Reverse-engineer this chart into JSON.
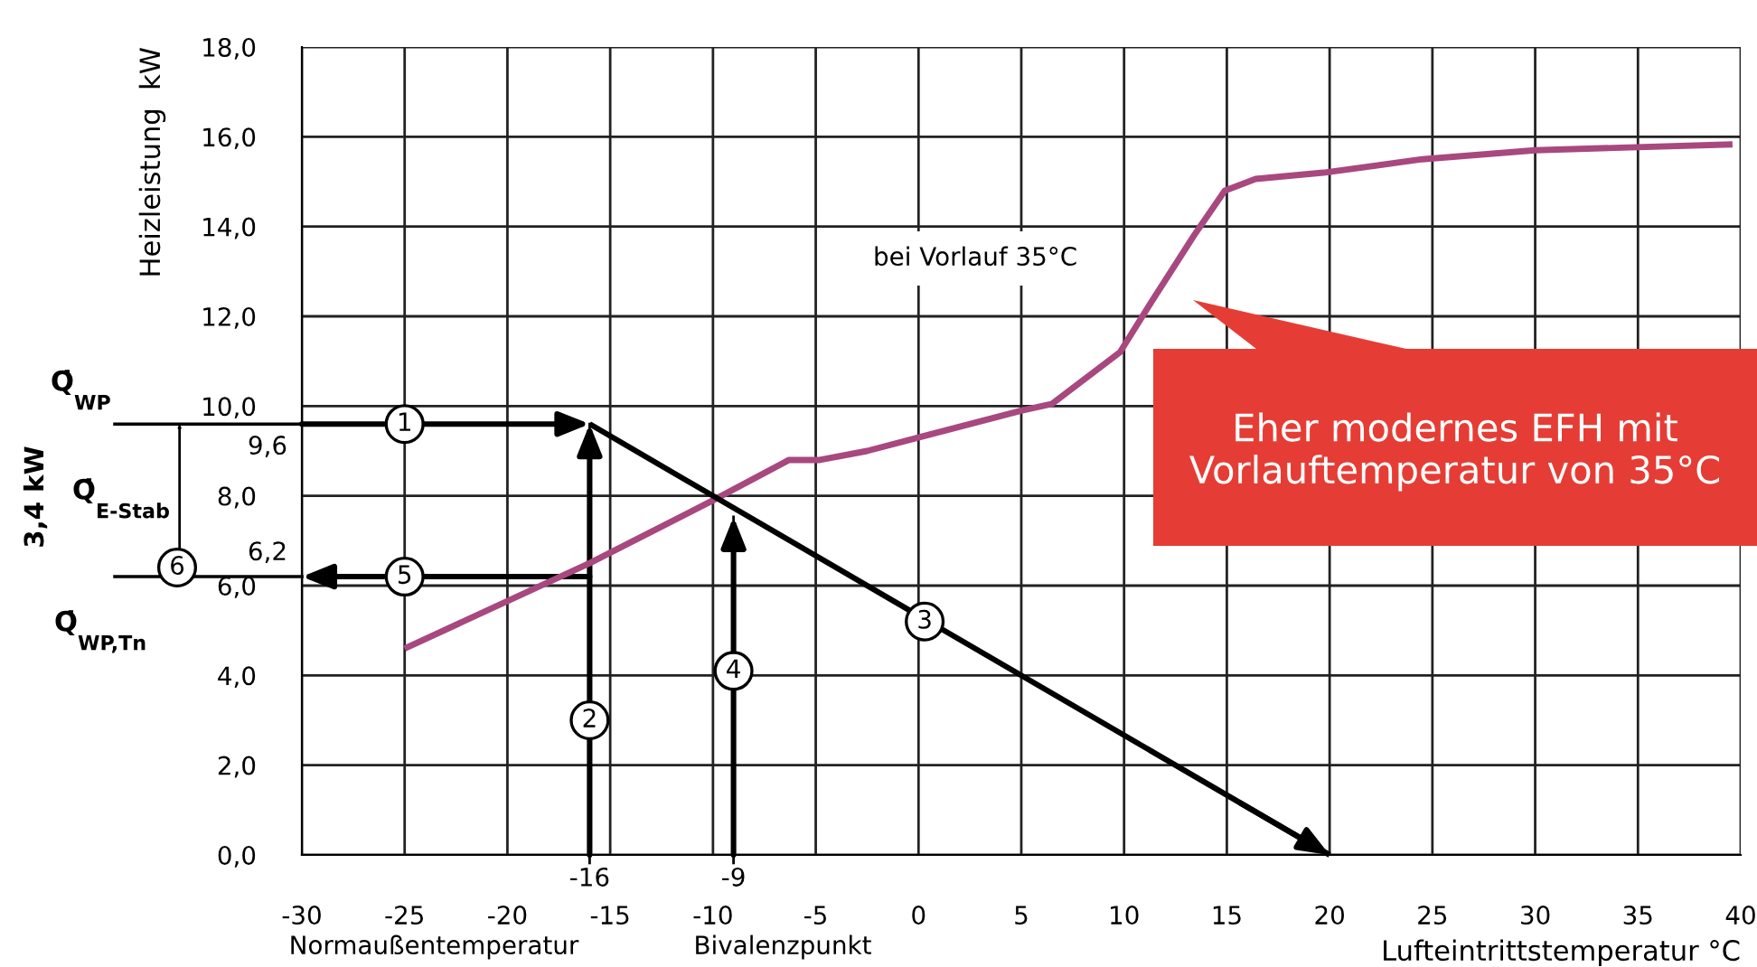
{
  "chart_data": {
    "type": "line",
    "xlabel": "Lufteintrittstemperatur °C",
    "ylabel": "Heizleistung  kW",
    "xlim": [
      -30,
      40
    ],
    "xticks": [
      -30,
      -25,
      -20,
      -15,
      -10,
      -5,
      0,
      5,
      10,
      15,
      20,
      25,
      30,
      35,
      40
    ],
    "ylim": [
      0,
      18
    ],
    "yticks": [
      {
        "value": 0,
        "label": "0,0"
      },
      {
        "value": 2,
        "label": "2,0"
      },
      {
        "value": 4,
        "label": "4,0"
      },
      {
        "value": 6,
        "label": "6,0"
      },
      {
        "value": 8,
        "label": "8,0"
      },
      {
        "value": 10,
        "label": "10,0"
      },
      {
        "value": 12,
        "label": "12,0"
      },
      {
        "value": 14,
        "label": "14,0"
      },
      {
        "value": 16,
        "label": "16,0"
      },
      {
        "value": 18,
        "label": "18,0"
      }
    ],
    "grid": true,
    "series": [
      {
        "color": "#a8487f",
        "marker": "none",
        "x": [
          -25,
          -16,
          -10,
          -6.3,
          -4.8,
          -2.5,
          5,
          6.5,
          9.8,
          11.3,
          13.4,
          14.9,
          16.4,
          19.7,
          24.5,
          30,
          39.6
        ],
        "values": [
          4.6,
          6.5,
          7.9,
          8.8,
          8.8,
          9.0,
          9.9,
          10.05,
          11.2,
          12.3,
          13.8,
          14.8,
          15.06,
          15.2,
          15.5,
          15.7,
          15.83
        ]
      },
      {
        "color": "#000000",
        "x": [
          -16,
          20
        ],
        "values": [
          9.6,
          0
        ]
      }
    ],
    "ref_lines": [
      {
        "axis": "y",
        "value": 9.6,
        "label": "9,6"
      },
      {
        "axis": "y",
        "value": 6.2,
        "label": "6,2"
      },
      {
        "axis": "x",
        "value": -16,
        "label": "-16"
      },
      {
        "axis": "x",
        "value": -9,
        "label": "-9"
      }
    ],
    "annotations": [
      "bei Vorlauf 35°C",
      "Eher modernes EFH mit\nVorlauftemperatur von 35°C",
      "Normaußentemperatur",
      "Bivalenzpunkt",
      "Q̇$_{WP}$",
      "Q̇$_{E-Stab}$",
      "Q̇$_{WP,Tn}$",
      "3,4 kW",
      "6",
      {
        "text": "1",
        "x": -25,
        "y": 9.6
      },
      {
        "text": "2",
        "x": -16,
        "y": 3.0
      },
      {
        "text": "3",
        "x": 0.3,
        "y": 5.2
      },
      {
        "text": "4",
        "x": -9,
        "y": 4.1
      },
      {
        "text": "5",
        "x": -25,
        "y": 6.2
      }
    ]
  }
}
